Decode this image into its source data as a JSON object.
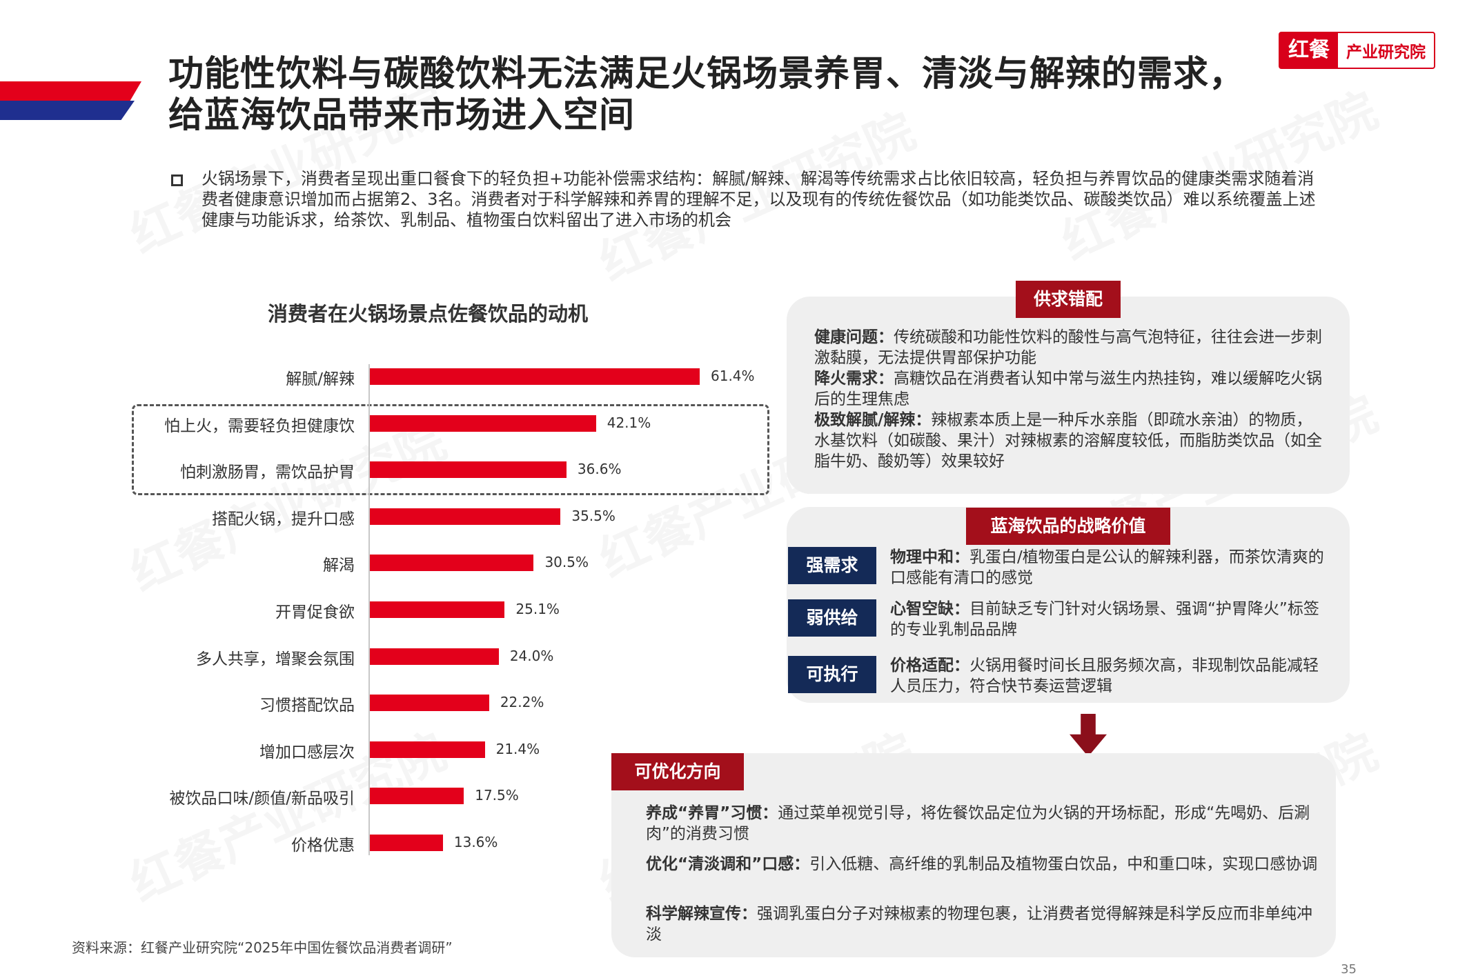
{
  "header": {
    "title_line1": "功能性饮料与碳酸饮料无法满足火锅场景养胃、清淡与解辣的需求，",
    "title_line2": "给蓝海饮品带来市场进入空间",
    "logo_mark": "红餐",
    "logo_text": "产业研究院"
  },
  "intro": "火锅场景下，消费者呈现出重口餐食下的轻负担+功能补偿需求结构：解腻/解辣、解渴等传统需求占比依旧较高，轻负担与养胃饮品的健康类需求随着消费者健康意识增加而占据第2、3名。消费者对于科学解辣和养胃的理解不足，以及现有的传统佐餐饮品（如功能类饮品、碳酸类饮品）难以系统覆盖上述健康与功能诉求，给茶饮、乳制品、植物蛋白饮料留出了进入市场的机会",
  "chart_data": {
    "type": "bar",
    "orientation": "horizontal",
    "title": "消费者在火锅场景点佐餐饮品的动机",
    "categories": [
      "解腻/解辣",
      "怕上火，需要轻负担健康饮",
      "怕刺激肠胃，需饮品护胃",
      "搭配火锅，提升口感",
      "解渴",
      "开胃促食欲",
      "多人共享，增聚会氛围",
      "习惯搭配饮品",
      "增加口感层次",
      "被饮品口味/颜值/新品吸引",
      "价格优惠"
    ],
    "values": [
      61.4,
      42.1,
      36.6,
      35.5,
      30.5,
      25.1,
      24.0,
      22.2,
      21.4,
      17.5,
      13.6
    ],
    "value_labels": [
      "61.4%",
      "42.1%",
      "36.6%",
      "35.5%",
      "30.5%",
      "25.1%",
      "24.0%",
      "22.2%",
      "21.4%",
      "17.5%",
      "13.6%"
    ],
    "xlim": [
      0,
      70
    ],
    "highlighted": [
      1,
      2
    ],
    "bar_color": "#e3001b",
    "grid": false,
    "legend": "none"
  },
  "source": "资料来源：红餐产业研究院“2025年中国佐餐饮品消费者调研”",
  "panel1": {
    "tag": "供求错配",
    "items": [
      {
        "label": "健康问题：",
        "text": "传统碳酸和功能性饮料的酸性与高气泡特征，往往会进一步刺激黏膜，无法提供胃部保护功能"
      },
      {
        "label": "降火需求：",
        "text": "高糖饮品在消费者认知中常与滋生内热挂钩，难以缓解吃火锅后的生理焦虑"
      },
      {
        "label": "极致解腻/解辣：",
        "text": "辣椒素本质上是一种斥水亲脂（即疏水亲油）的物质，水基饮料（如碳酸、果汁）对辣椒素的溶解度较低，而脂肪类饮品（如全脂牛奶、酸奶等）效果较好"
      }
    ]
  },
  "panel2": {
    "tag": "蓝海饮品的战略价值",
    "items": [
      {
        "badge": "强需求",
        "label": "物理中和：",
        "text": "乳蛋白/植物蛋白是公认的解辣利器，而茶饮清爽的口感能有清口的感觉"
      },
      {
        "badge": "弱供给",
        "label": "心智空缺：",
        "text": "目前缺乏专门针对火锅场景、强调“护胃降火”标签的专业乳制品品牌"
      },
      {
        "badge": "可执行",
        "label": "价格适配：",
        "text": "火锅用餐时间长且服务频次高，非现制饮品能减轻人员压力，符合快节奏运营逻辑"
      }
    ]
  },
  "panel3": {
    "tag": "可优化方向",
    "items": [
      {
        "label": "养成“养胃”习惯：",
        "text": "通过菜单视觉引导，将佐餐饮品定位为火锅的开场标配，形成“先喝奶、后涮肉”的消费习惯"
      },
      {
        "label": "优化“清淡调和”口感：",
        "text": "引入低糖、高纤维的乳制品及植物蛋白饮品，中和重口味，实现口感协调"
      },
      {
        "label": "科学解辣宣传：",
        "text": "强调乳蛋白分子对辣椒素的物理包裹，让消费者觉得解辣是科学反应而非单纯冲淡"
      }
    ]
  },
  "page_number": "35",
  "watermark": "红餐产业研究院"
}
